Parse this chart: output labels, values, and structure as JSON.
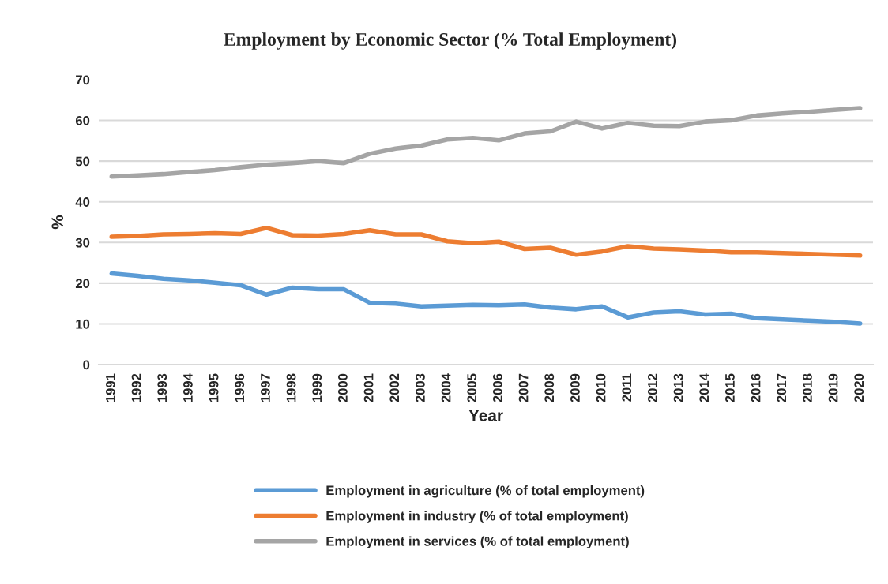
{
  "chart_data": {
    "type": "line",
    "title": "Employment by Economic Sector (% Total Employment)",
    "xlabel": "Year",
    "ylabel": "%",
    "categories": [
      "1991",
      "1992",
      "1993",
      "1994",
      "1995",
      "1996",
      "1997",
      "1998",
      "1999",
      "2000",
      "2001",
      "2002",
      "2003",
      "2004",
      "2005",
      "2006",
      "2007",
      "2008",
      "2009",
      "2010",
      "2011",
      "2012",
      "2013",
      "2014",
      "2015",
      "2016",
      "2017",
      "2018",
      "2019",
      "2020"
    ],
    "series": [
      {
        "name": "Employment in agriculture (% of total employment)",
        "color": "#5b9bd5",
        "values": [
          22.4,
          21.8,
          21.1,
          20.7,
          20.1,
          19.5,
          17.2,
          18.9,
          18.5,
          18.5,
          15.2,
          15.0,
          14.3,
          14.5,
          14.7,
          14.6,
          14.8,
          14.0,
          13.6,
          14.3,
          11.6,
          12.8,
          13.1,
          12.3,
          12.5,
          11.4,
          11.1,
          10.8,
          10.5,
          10.1
        ]
      },
      {
        "name": "Employment in industry (% of total employment)",
        "color": "#ed7d31",
        "values": [
          31.4,
          31.6,
          32.0,
          32.1,
          32.3,
          32.1,
          33.6,
          31.8,
          31.7,
          32.1,
          33.0,
          32.0,
          32.0,
          30.3,
          29.8,
          30.2,
          28.4,
          28.7,
          27.0,
          27.8,
          29.1,
          28.5,
          28.3,
          28.0,
          27.6,
          27.6,
          27.4,
          27.2,
          27.0,
          26.8
        ]
      },
      {
        "name": "Employment in services (% of total employment)",
        "color": "#a5a5a5",
        "values": [
          46.2,
          46.5,
          46.8,
          47.3,
          47.8,
          48.5,
          49.1,
          49.5,
          50.0,
          49.5,
          51.8,
          53.1,
          53.8,
          55.3,
          55.7,
          55.1,
          56.8,
          57.3,
          59.7,
          58.0,
          59.4,
          58.7,
          58.6,
          59.7,
          60.0,
          61.2,
          61.7,
          62.1,
          62.6,
          63.0
        ]
      }
    ],
    "ylim": [
      0,
      70
    ],
    "yticks": [
      0,
      10,
      20,
      30,
      40,
      50,
      60,
      70
    ],
    "grid": "y",
    "legend": "bottom",
    "marker": "none",
    "line_style": "solid"
  }
}
